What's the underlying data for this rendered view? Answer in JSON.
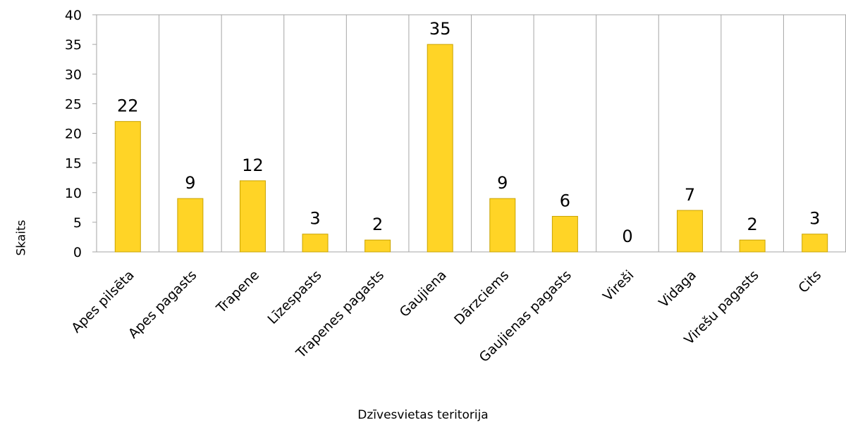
{
  "chart_data": {
    "type": "bar",
    "categories": [
      "Apes pilsēta",
      "Apes pagasts",
      "Trapene",
      "Līzespasts",
      "Trapenes pagasts",
      "Gaujiena",
      "Dārzciems",
      "Gaujienas pagasts",
      "Vireši",
      "Vidaga",
      "Virešu pagasts",
      "Cits"
    ],
    "values": [
      22,
      9,
      12,
      3,
      2,
      35,
      9,
      6,
      0,
      7,
      2,
      3
    ],
    "xlabel": "Dzīvesvietas teritorija",
    "ylabel": "Skaits",
    "ylim": [
      0,
      40
    ],
    "yticks": [
      0,
      5,
      10,
      15,
      20,
      25,
      30,
      35,
      40
    ],
    "grid": "vertical",
    "data_labels": true,
    "colors": {
      "bar": "#FFD426",
      "bar_stroke": "#C9A300",
      "grid": "#A6A6A6"
    }
  }
}
